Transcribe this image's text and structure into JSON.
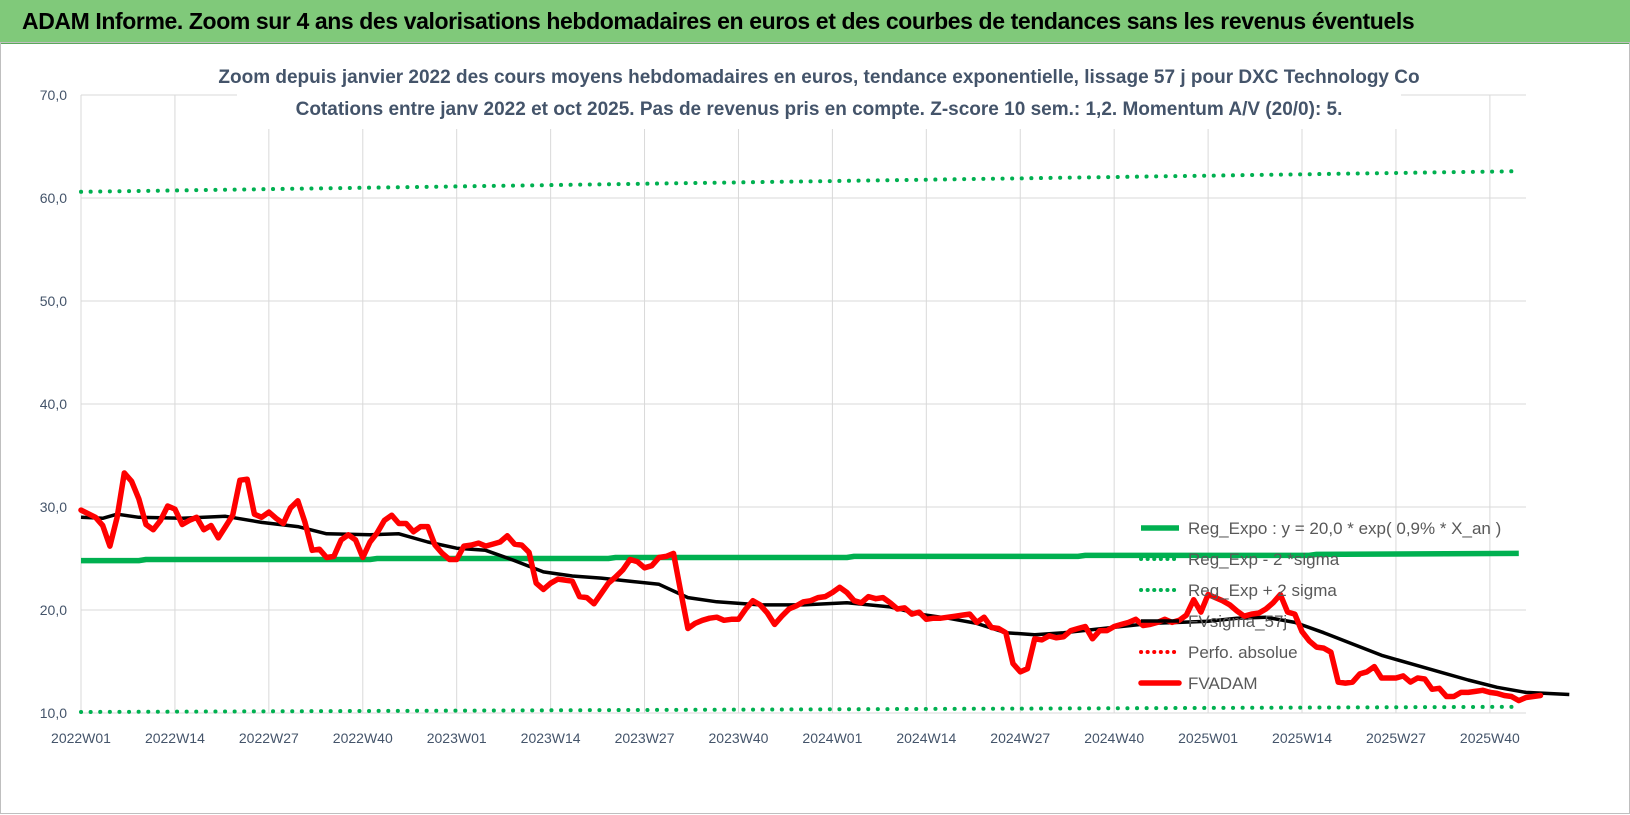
{
  "banner": {
    "title": "ADAM Informe. Zoom sur 4 ans des valorisations hebdomadaires en euros et des courbes de tendances sans les revenus éventuels"
  },
  "chart_data": {
    "type": "line",
    "title": "Zoom depuis janvier 2022 des cours moyens hebdomadaires en euros, tendance exponentielle, lissage 57 j pour DXC Technology Co",
    "subtitle": "Cotations entre janv 2022 et oct 2025. Pas de revenus pris en compte. Z-score 10 sem.: 1,2. Momentum A/V (20/0): 5.",
    "xlabel": "",
    "ylabel": "",
    "ylim": [
      10,
      70
    ],
    "y_ticks": [
      "10,0",
      "20,0",
      "30,0",
      "40,0",
      "50,0",
      "60,0",
      "70,0"
    ],
    "x_ticks": [
      "2022W01",
      "2022W14",
      "2022W27",
      "2022W40",
      "2023W01",
      "2023W14",
      "2023W27",
      "2023W40",
      "2024W01",
      "2024W14",
      "2024W27",
      "2024W40",
      "2025W01",
      "2025W14",
      "2025W27",
      "2025W40"
    ],
    "week_count": 200,
    "grid": true,
    "legend_position": "right",
    "series": [
      {
        "name": "Reg_Expo : y = 20,0 * exp( 0,9% * X_an )",
        "color": "#00b050",
        "style": "solid",
        "points": [
          [
            0,
            24.8
          ],
          [
            8,
            24.8
          ],
          [
            9,
            24.9
          ],
          [
            40,
            24.9
          ],
          [
            41,
            25.0
          ],
          [
            73,
            25.0
          ],
          [
            74,
            25.1
          ],
          [
            106,
            25.1
          ],
          [
            107,
            25.2
          ],
          [
            138,
            25.2
          ],
          [
            139,
            25.3
          ],
          [
            170,
            25.3
          ],
          [
            171,
            25.4
          ],
          [
            199,
            25.5
          ]
        ]
      },
      {
        "name": "Reg_Exp - 2 *sigma",
        "color": "#00b050",
        "style": "dotted",
        "points": [
          [
            0,
            10.1
          ],
          [
            199,
            10.6
          ]
        ]
      },
      {
        "name": "Reg_Exp + 2 sigma",
        "color": "#00b050",
        "style": "dotted",
        "points": [
          [
            0,
            60.6
          ],
          [
            199,
            62.6
          ]
        ]
      },
      {
        "name": "FVsigma_57j",
        "color": "#000000",
        "style": "solid",
        "points": [
          [
            0,
            29.0
          ],
          [
            3,
            28.9
          ],
          [
            5,
            29.3
          ],
          [
            8,
            29.0
          ],
          [
            14,
            28.9
          ],
          [
            20,
            29.1
          ],
          [
            25,
            28.5
          ],
          [
            30,
            28.1
          ],
          [
            34,
            27.4
          ],
          [
            40,
            27.3
          ],
          [
            44,
            27.4
          ],
          [
            48,
            26.6
          ],
          [
            52,
            26.0
          ],
          [
            56,
            25.8
          ],
          [
            60,
            24.8
          ],
          [
            64,
            23.7
          ],
          [
            68,
            23.3
          ],
          [
            72,
            23.1
          ],
          [
            76,
            22.8
          ],
          [
            80,
            22.5
          ],
          [
            84,
            21.2
          ],
          [
            88,
            20.8
          ],
          [
            94,
            20.5
          ],
          [
            100,
            20.5
          ],
          [
            106,
            20.7
          ],
          [
            112,
            20.3
          ],
          [
            116,
            19.6
          ],
          [
            120,
            19.2
          ],
          [
            124,
            18.7
          ],
          [
            128,
            17.8
          ],
          [
            132,
            17.6
          ],
          [
            136,
            17.8
          ],
          [
            140,
            18.1
          ],
          [
            144,
            18.4
          ],
          [
            148,
            18.7
          ],
          [
            152,
            18.8
          ],
          [
            156,
            18.9
          ],
          [
            160,
            19.2
          ],
          [
            164,
            19.3
          ],
          [
            168,
            18.8
          ],
          [
            172,
            17.8
          ],
          [
            176,
            16.7
          ],
          [
            180,
            15.6
          ],
          [
            184,
            14.8
          ],
          [
            188,
            14.0
          ],
          [
            192,
            13.2
          ],
          [
            196,
            12.5
          ],
          [
            200,
            12.0
          ],
          [
            206,
            11.8
          ]
        ]
      },
      {
        "name": "Perfo. absolue",
        "color": "#ff0000",
        "style": "dotted",
        "points": []
      },
      {
        "name": "FVADAM",
        "color": "#ff0000",
        "style": "thick",
        "points": [
          [
            0,
            29.7
          ],
          [
            2,
            29.0
          ],
          [
            3,
            28.2
          ],
          [
            4,
            26.2
          ],
          [
            5,
            29.0
          ],
          [
            6,
            33.3
          ],
          [
            7,
            32.5
          ],
          [
            8,
            30.8
          ],
          [
            9,
            28.3
          ],
          [
            10,
            27.8
          ],
          [
            11,
            28.7
          ],
          [
            12,
            30.1
          ],
          [
            13,
            29.8
          ],
          [
            14,
            28.3
          ],
          [
            15,
            28.7
          ],
          [
            16,
            29.0
          ],
          [
            17,
            27.8
          ],
          [
            18,
            28.2
          ],
          [
            19,
            27.0
          ],
          [
            20,
            28.1
          ],
          [
            21,
            29.2
          ],
          [
            22,
            32.6
          ],
          [
            23,
            32.7
          ],
          [
            24,
            29.3
          ],
          [
            25,
            29.0
          ],
          [
            26,
            29.5
          ],
          [
            27,
            28.9
          ],
          [
            28,
            28.4
          ],
          [
            29,
            29.9
          ],
          [
            30,
            30.6
          ],
          [
            31,
            28.5
          ],
          [
            32,
            25.8
          ],
          [
            33,
            25.9
          ],
          [
            34,
            25.1
          ],
          [
            35,
            25.2
          ],
          [
            36,
            26.8
          ],
          [
            37,
            27.3
          ],
          [
            38,
            26.8
          ],
          [
            39,
            25.1
          ],
          [
            40,
            26.6
          ],
          [
            41,
            27.5
          ],
          [
            42,
            28.7
          ],
          [
            43,
            29.2
          ],
          [
            44,
            28.4
          ],
          [
            45,
            28.4
          ],
          [
            46,
            27.6
          ],
          [
            47,
            28.1
          ],
          [
            48,
            28.1
          ],
          [
            49,
            26.3
          ],
          [
            50,
            25.5
          ],
          [
            51,
            24.9
          ],
          [
            52,
            24.9
          ],
          [
            53,
            26.2
          ],
          [
            54,
            26.3
          ],
          [
            55,
            26.5
          ],
          [
            56,
            26.2
          ],
          [
            57,
            26.4
          ],
          [
            58,
            26.6
          ],
          [
            59,
            27.2
          ],
          [
            60,
            26.4
          ],
          [
            61,
            26.3
          ],
          [
            62,
            25.6
          ],
          [
            63,
            22.6
          ],
          [
            64,
            22.0
          ],
          [
            65,
            22.6
          ],
          [
            66,
            23.0
          ],
          [
            67,
            22.9
          ],
          [
            68,
            22.8
          ],
          [
            69,
            21.3
          ],
          [
            70,
            21.2
          ],
          [
            71,
            20.6
          ],
          [
            72,
            21.6
          ],
          [
            73,
            22.6
          ],
          [
            74,
            23.2
          ],
          [
            75,
            23.9
          ],
          [
            76,
            24.9
          ],
          [
            77,
            24.7
          ],
          [
            78,
            24.1
          ],
          [
            79,
            24.3
          ],
          [
            80,
            25.1
          ],
          [
            81,
            25.2
          ],
          [
            82,
            25.5
          ],
          [
            83,
            21.8
          ],
          [
            84,
            18.2
          ],
          [
            85,
            18.7
          ],
          [
            86,
            19.0
          ],
          [
            87,
            19.2
          ],
          [
            88,
            19.3
          ],
          [
            89,
            19.0
          ],
          [
            90,
            19.1
          ],
          [
            91,
            19.1
          ],
          [
            92,
            20.1
          ],
          [
            93,
            20.9
          ],
          [
            94,
            20.5
          ],
          [
            95,
            19.7
          ],
          [
            96,
            18.6
          ],
          [
            97,
            19.4
          ],
          [
            98,
            20.1
          ],
          [
            99,
            20.4
          ],
          [
            100,
            20.8
          ],
          [
            101,
            20.9
          ],
          [
            102,
            21.2
          ],
          [
            103,
            21.3
          ],
          [
            104,
            21.7
          ],
          [
            105,
            22.2
          ],
          [
            106,
            21.7
          ],
          [
            107,
            20.9
          ],
          [
            108,
            20.7
          ],
          [
            109,
            21.3
          ],
          [
            110,
            21.1
          ],
          [
            111,
            21.2
          ],
          [
            112,
            20.7
          ],
          [
            113,
            20.1
          ],
          [
            114,
            20.2
          ],
          [
            115,
            19.6
          ],
          [
            116,
            19.8
          ],
          [
            117,
            19.1
          ],
          [
            118,
            19.2
          ],
          [
            119,
            19.2
          ],
          [
            120,
            19.3
          ],
          [
            121,
            19.4
          ],
          [
            122,
            19.5
          ],
          [
            123,
            19.6
          ],
          [
            124,
            18.8
          ],
          [
            125,
            19.3
          ],
          [
            126,
            18.3
          ],
          [
            127,
            18.2
          ],
          [
            128,
            17.8
          ],
          [
            129,
            14.8
          ],
          [
            130,
            14.0
          ],
          [
            131,
            14.3
          ],
          [
            132,
            17.2
          ],
          [
            133,
            17.1
          ],
          [
            134,
            17.5
          ],
          [
            135,
            17.3
          ],
          [
            136,
            17.4
          ],
          [
            137,
            18.0
          ],
          [
            138,
            18.2
          ],
          [
            139,
            18.4
          ],
          [
            140,
            17.2
          ],
          [
            141,
            18.0
          ],
          [
            142,
            18.0
          ],
          [
            143,
            18.4
          ],
          [
            144,
            18.6
          ],
          [
            145,
            18.8
          ],
          [
            146,
            19.1
          ],
          [
            147,
            18.5
          ],
          [
            148,
            18.6
          ],
          [
            149,
            18.8
          ],
          [
            150,
            19.1
          ],
          [
            151,
            18.8
          ],
          [
            152,
            19.0
          ],
          [
            153,
            19.5
          ],
          [
            154,
            21.0
          ],
          [
            155,
            19.8
          ],
          [
            156,
            21.5
          ],
          [
            157,
            21.2
          ],
          [
            158,
            20.9
          ],
          [
            159,
            20.5
          ],
          [
            160,
            19.9
          ],
          [
            161,
            19.4
          ],
          [
            162,
            19.6
          ],
          [
            163,
            19.7
          ],
          [
            164,
            20.1
          ],
          [
            165,
            20.7
          ],
          [
            166,
            21.5
          ],
          [
            167,
            19.8
          ],
          [
            168,
            19.6
          ],
          [
            169,
            17.9
          ],
          [
            170,
            17.0
          ],
          [
            171,
            16.4
          ],
          [
            172,
            16.3
          ],
          [
            173,
            15.9
          ],
          [
            174,
            13.0
          ],
          [
            175,
            12.9
          ],
          [
            176,
            13.0
          ],
          [
            177,
            13.8
          ],
          [
            178,
            14.0
          ],
          [
            179,
            14.5
          ],
          [
            180,
            13.4
          ],
          [
            181,
            13.4
          ],
          [
            182,
            13.4
          ],
          [
            183,
            13.6
          ],
          [
            184,
            13.0
          ],
          [
            185,
            13.4
          ],
          [
            186,
            13.3
          ],
          [
            187,
            12.3
          ],
          [
            188,
            12.4
          ],
          [
            189,
            11.6
          ],
          [
            190,
            11.6
          ],
          [
            191,
            12.0
          ],
          [
            192,
            12.0
          ],
          [
            193,
            12.1
          ],
          [
            194,
            12.2
          ],
          [
            195,
            12.0
          ],
          [
            196,
            11.9
          ],
          [
            197,
            11.7
          ],
          [
            198,
            11.6
          ],
          [
            199,
            11.2
          ],
          [
            200,
            11.5
          ],
          [
            202,
            11.7
          ]
        ]
      }
    ]
  }
}
